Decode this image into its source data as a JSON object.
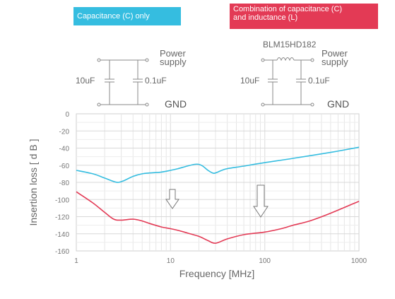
{
  "labels": {
    "capacitance_only": "Capacitance (C) only",
    "combination_line1": "Combination of capacitance (C)",
    "combination_line2": "and inductance (L)",
    "part_number": "BLM15HD182",
    "cap_large_left": "10uF",
    "cap_small_left": "0.1uF",
    "cap_large_right": "10uF",
    "cap_small_right": "0.1uF",
    "power_left_1": "Power",
    "power_left_2": "supply",
    "power_right_1": "Power",
    "power_right_2": "supply",
    "gnd_left": "GND",
    "gnd_right": "GND"
  },
  "colors": {
    "cyan": "#35bde0",
    "red": "#e33a55"
  },
  "chart_data": {
    "type": "line",
    "xscale": "log",
    "xlim": [
      1,
      1000
    ],
    "ylim": [
      -160,
      0
    ],
    "xlabel": "Frequency [MHz]",
    "ylabel": "Insertion loss [ d B ]",
    "x_ticks": [
      "1",
      "10",
      "100",
      "1000"
    ],
    "y_ticks": [
      "0",
      "-20",
      "-40",
      "-60",
      "-80",
      "-100",
      "-120",
      "-140",
      "-160"
    ],
    "grid": true,
    "series": [
      {
        "color": "#35bde0",
        "x": [
          1,
          1.5,
          2,
          2.5,
          2.8,
          3.2,
          4,
          5,
          6,
          8,
          10,
          12,
          15,
          18,
          20,
          22,
          25,
          28,
          30,
          35,
          40,
          60,
          100,
          200,
          500,
          1000
        ],
        "y": [
          -66,
          -70,
          -75,
          -79,
          -80,
          -78,
          -73,
          -70,
          -69,
          -68,
          -66,
          -64,
          -61,
          -59,
          -59,
          -61,
          -66,
          -69,
          -69,
          -66,
          -64,
          -61,
          -57,
          -52,
          -45,
          -39
        ]
      },
      {
        "color": "#e33a55",
        "x": [
          1,
          1.5,
          2,
          2.5,
          3,
          4,
          5,
          6,
          8,
          10,
          12,
          15,
          20,
          25,
          30,
          40,
          60,
          100,
          150,
          200,
          300,
          500,
          1000
        ],
        "y": [
          -91,
          -104,
          -115,
          -123,
          -124,
          -123,
          -125,
          -128,
          -132,
          -134,
          -136,
          -139,
          -143,
          -148,
          -151,
          -146,
          -141,
          -138,
          -134,
          -130,
          -125,
          -116,
          -102
        ]
      }
    ]
  }
}
